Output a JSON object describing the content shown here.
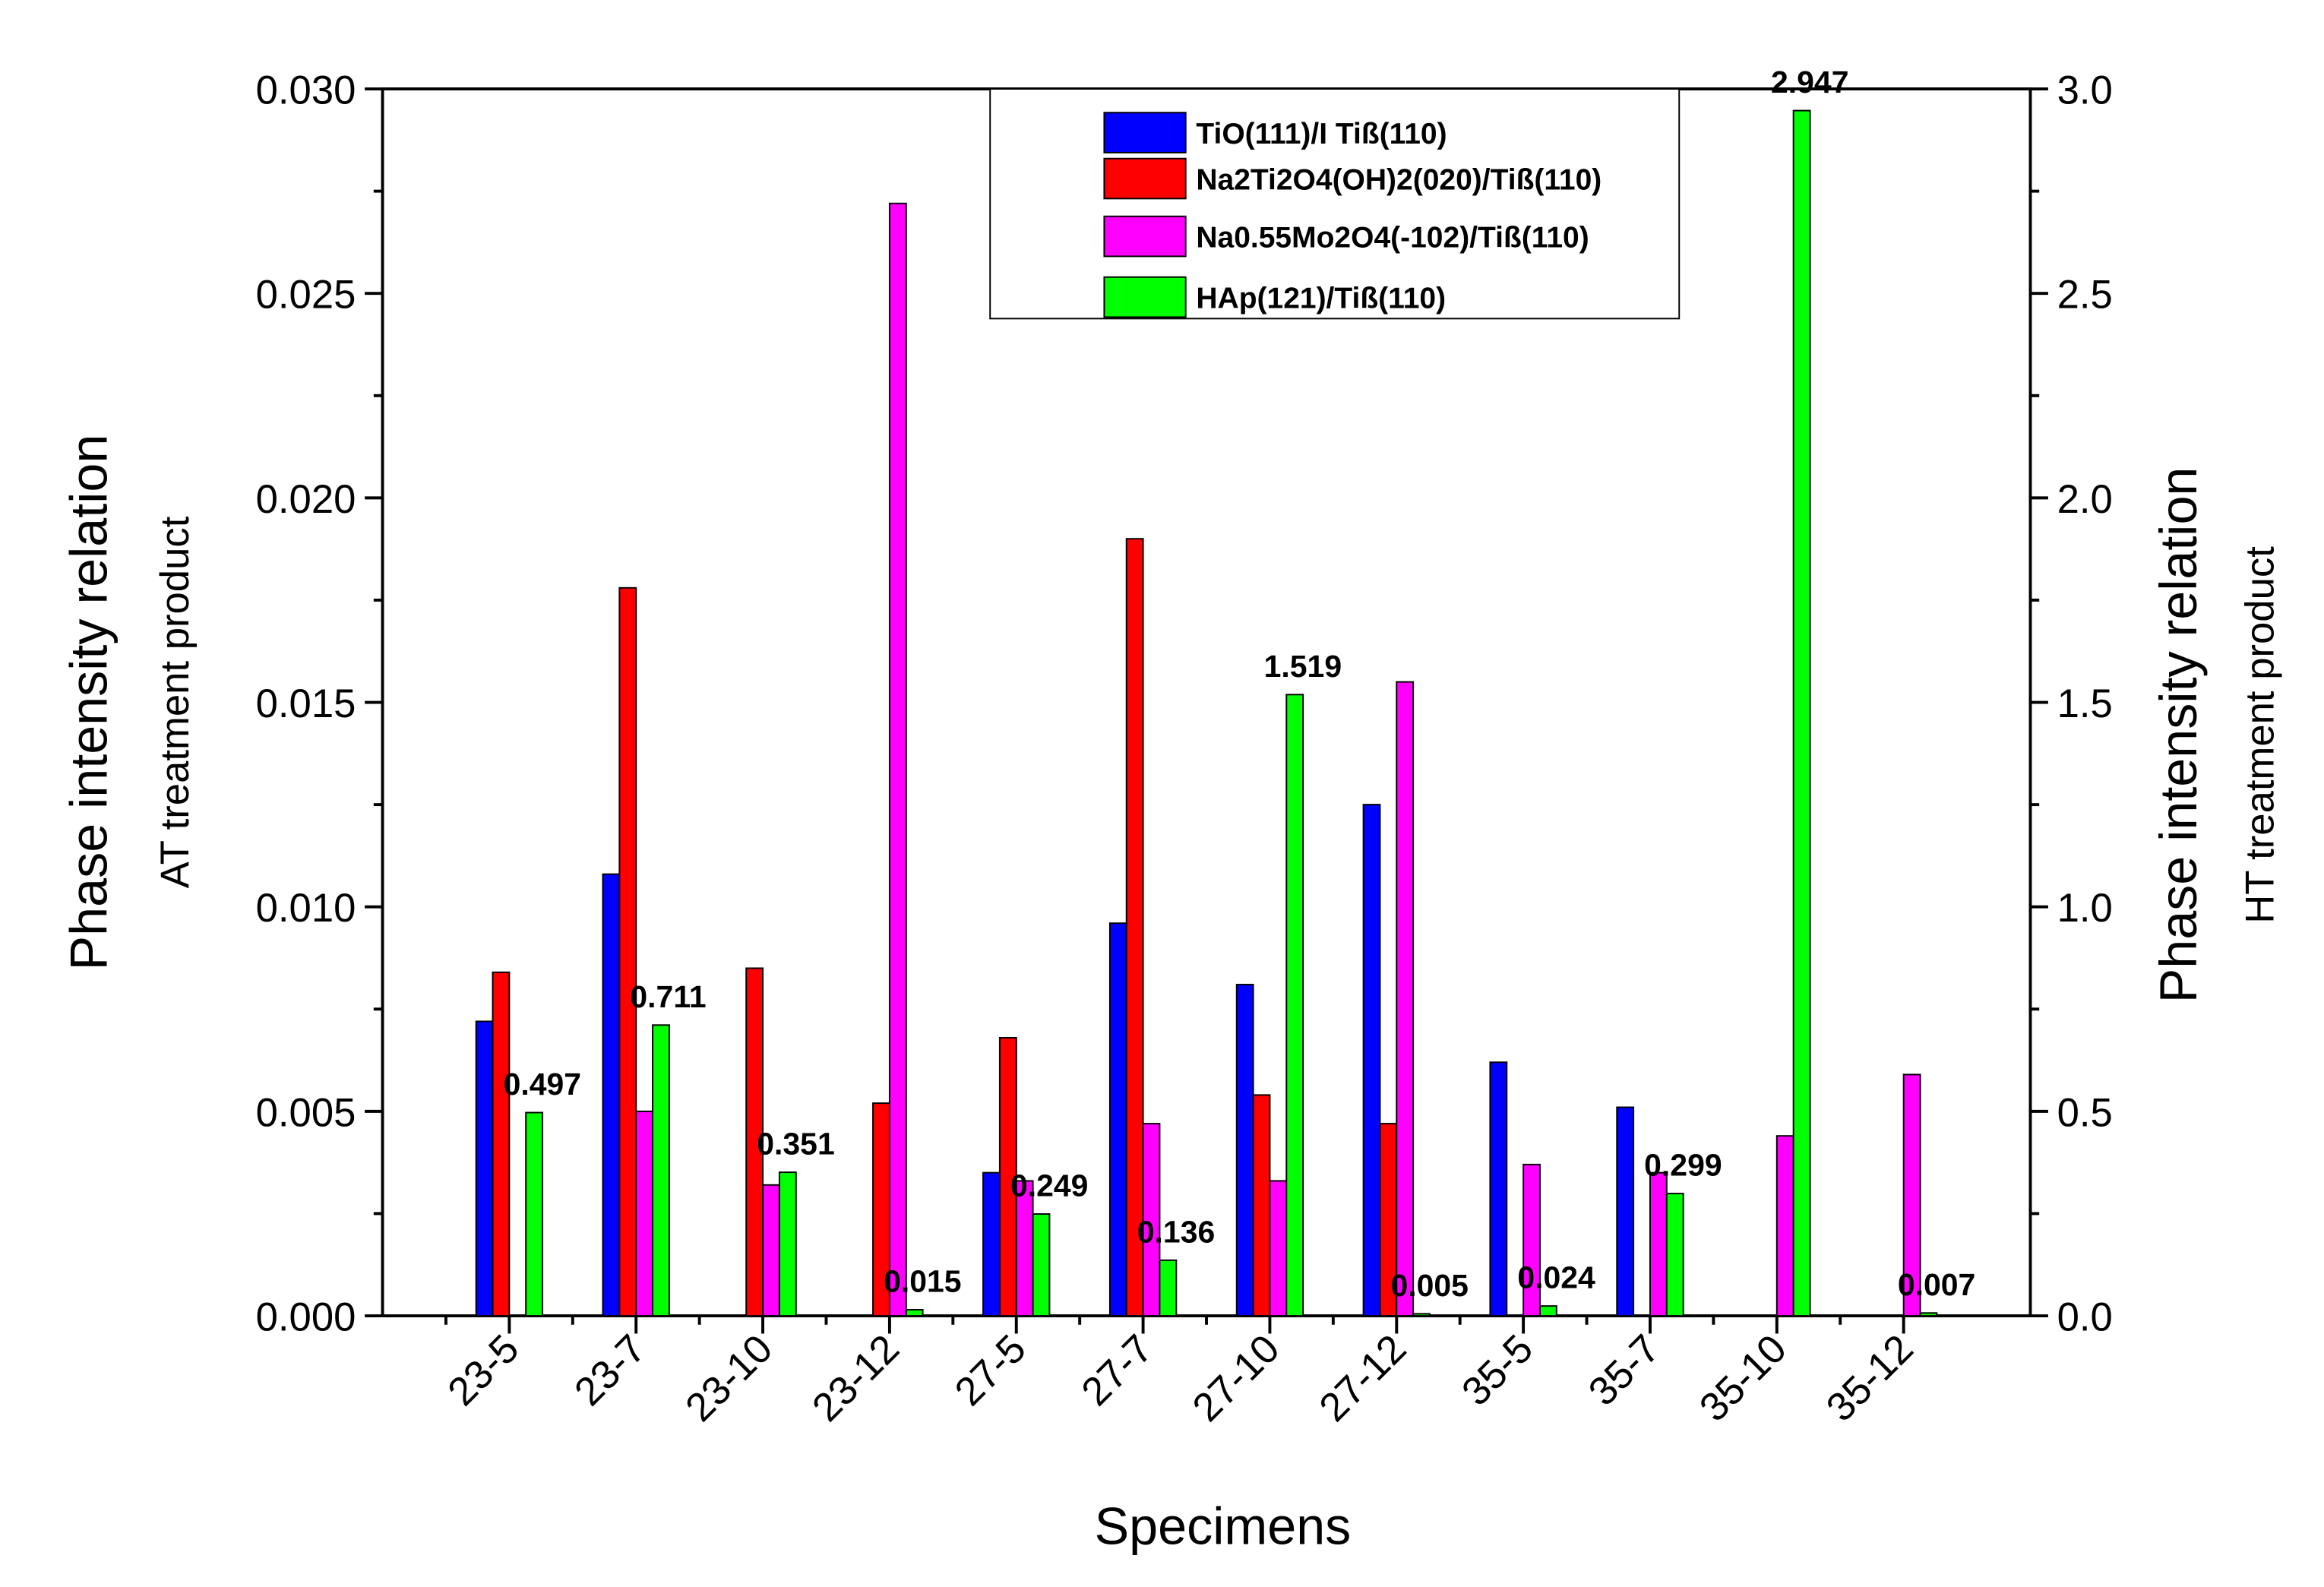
{
  "chart_data": {
    "type": "bar",
    "x_label": "Specimens",
    "y_label": "Phase intensity relation",
    "y_sublabel": "AT treatment product",
    "y2_label": "Phase intensity relation",
    "y2_sublabel": "HT treatment product",
    "categories": [
      "23-5",
      "23-7",
      "23-10",
      "23-12",
      "27-5",
      "27-7",
      "27-10",
      "27-12",
      "35-5",
      "35-7",
      "35-10",
      "35-12"
    ],
    "ylim": [
      0,
      0.03
    ],
    "yticks": [
      {
        "value": 0,
        "label": "0.000"
      },
      0.005,
      {
        "value": 0.01,
        "label": "0.010"
      },
      0.015,
      {
        "value": 0.02,
        "label": "0.020"
      },
      0.025,
      {
        "value": 0.03,
        "label": "0.030"
      }
    ],
    "y2lim": [
      0,
      3.0
    ],
    "y2ticks": [
      {
        "value": 0,
        "label": "0.0"
      },
      0.5,
      {
        "value": 1,
        "label": "1.0"
      },
      1.5,
      {
        "value": 2,
        "label": "2.0"
      },
      2.5,
      {
        "value": 3,
        "label": "3.0"
      }
    ],
    "legend": "top-center",
    "series": [
      {
        "name": "TiO(111)/I Tiß(110)",
        "color": "#0000ff",
        "values": [
          0.0072,
          0.0108,
          null,
          null,
          0.0035,
          0.0096,
          0.0081,
          0.0125,
          0.0062,
          0.0051,
          null,
          null
        ]
      },
      {
        "name": "Na2Ti2O4(OH)2(020)/Tiß(110)",
        "color": "#ff0000",
        "values": [
          0.0084,
          0.0178,
          0.0085,
          0.0052,
          0.0068,
          0.019,
          0.0054,
          0.0047,
          null,
          null,
          null,
          null
        ]
      },
      {
        "name": "Na0.55Mo2O4(-102)/Tiß(110)",
        "color": "#ff00ff",
        "values": [
          null,
          0.005,
          0.0032,
          0.0272,
          0.0033,
          0.0047,
          0.0033,
          0.0155,
          0.0037,
          0.0035,
          0.0044,
          0.0059
        ]
      },
      {
        "name": "HAp(121)/Tiß(110)",
        "color": "#00ff00",
        "axis": "y2",
        "data_labels": true,
        "values": [
          0.497,
          0.711,
          0.351,
          0.015,
          0.249,
          0.136,
          1.519,
          0.005,
          0.024,
          0.299,
          2.947,
          0.007
        ]
      }
    ]
  }
}
